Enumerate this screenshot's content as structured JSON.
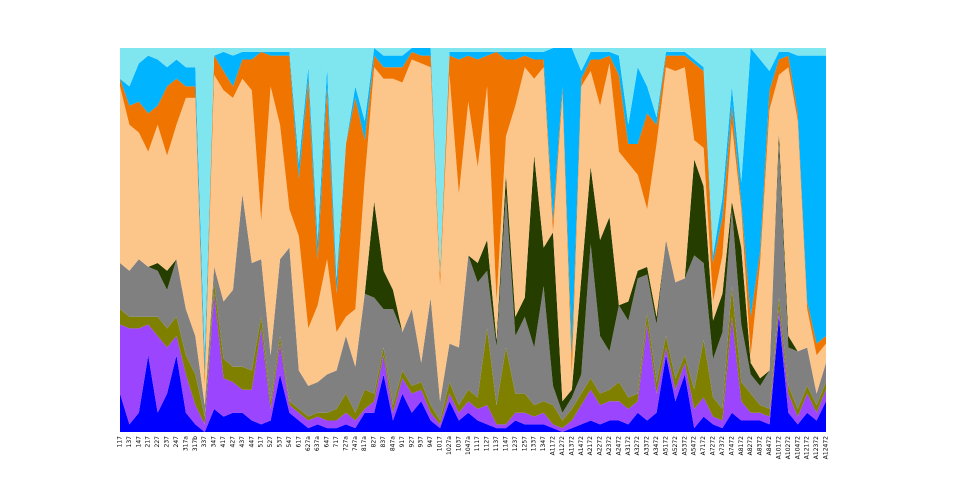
{
  "chart_data": {
    "type": "stacked-area",
    "categories": [
      "117",
      "137",
      "147",
      "217",
      "227",
      "237",
      "247",
      "317a",
      "317b",
      "337",
      "347",
      "417",
      "427",
      "437",
      "447",
      "517",
      "527",
      "537",
      "547",
      "617",
      "627a",
      "637a",
      "647",
      "717",
      "727a",
      "747a",
      "817a",
      "827",
      "837",
      "847a",
      "917",
      "927",
      "937",
      "947",
      "1017",
      "1027a",
      "1037",
      "1047a",
      "1117",
      "1127",
      "1137",
      "1147",
      "1237",
      "1257",
      "1337",
      "1347",
      "A1172",
      "A1272",
      "A1372",
      "A1472",
      "A2172",
      "A2272",
      "A2372",
      "A2472",
      "A3172",
      "A3272",
      "A3372",
      "A3472",
      "A5172",
      "A5272",
      "A5372",
      "A5472",
      "A7172",
      "A7272",
      "A7372",
      "A7472",
      "A8172",
      "A8272",
      "A8372",
      "A8472",
      "A10172",
      "A10272",
      "A10472",
      "A12172",
      "A12372",
      "A12472"
    ],
    "ylim": [
      0,
      100
    ],
    "series": [
      {
        "color": "#0000ff",
        "values": [
          10,
          2,
          5,
          20,
          5,
          10,
          20,
          5,
          2,
          0,
          6,
          4,
          5,
          5,
          3,
          2,
          3,
          15,
          5,
          3,
          1,
          2,
          1,
          1,
          2,
          1,
          5,
          5,
          15,
          3,
          10,
          5,
          8,
          3,
          1,
          8,
          3,
          5,
          3,
          2,
          1,
          1,
          3,
          2,
          2,
          2,
          1,
          0,
          1,
          2,
          3,
          2,
          3,
          3,
          2,
          5,
          3,
          5,
          20,
          8,
          15,
          1,
          4,
          2,
          1,
          5,
          3,
          3,
          3,
          2,
          30,
          5,
          2,
          5,
          3,
          8
        ]
      },
      {
        "color": "#9b45ff",
        "values": [
          18,
          25,
          22,
          8,
          20,
          12,
          5,
          10,
          5,
          2,
          30,
          10,
          8,
          6,
          8,
          25,
          3,
          8,
          2,
          2,
          2,
          2,
          2,
          2,
          3,
          2,
          1,
          3,
          5,
          2,
          4,
          5,
          3,
          2,
          1,
          2,
          2,
          3,
          3,
          5,
          1,
          1,
          2,
          3,
          2,
          3,
          1,
          1,
          2,
          5,
          8,
          5,
          5,
          5,
          4,
          3,
          25,
          5,
          2,
          3,
          3,
          5,
          5,
          2,
          2,
          25,
          5,
          2,
          2,
          2,
          2,
          5,
          2,
          5,
          2,
          3
        ]
      },
      {
        "color": "#808000",
        "values": [
          4,
          3,
          3,
          2,
          5,
          5,
          5,
          5,
          8,
          2,
          3,
          5,
          4,
          6,
          5,
          3,
          2,
          2,
          1,
          1,
          1,
          1,
          2,
          3,
          5,
          2,
          5,
          2,
          2,
          2,
          2,
          2,
          2,
          2,
          1,
          3,
          2,
          3,
          3,
          20,
          5,
          20,
          5,
          5,
          3,
          3,
          5,
          2,
          3,
          3,
          3,
          3,
          3,
          5,
          3,
          2,
          3,
          3,
          3,
          3,
          2,
          5,
          15,
          5,
          3,
          8,
          5,
          5,
          2,
          2,
          3,
          2,
          2,
          2,
          2,
          2
        ]
      },
      {
        "color": "#808080",
        "values": [
          12,
          12,
          15,
          13,
          12,
          10,
          15,
          12,
          10,
          3,
          4,
          15,
          20,
          45,
          28,
          15,
          12,
          20,
          40,
          10,
          8,
          8,
          10,
          10,
          15,
          12,
          25,
          25,
          10,
          25,
          10,
          20,
          5,
          28,
          5,
          10,
          15,
          35,
          30,
          15,
          15,
          40,
          15,
          20,
          15,
          30,
          5,
          2,
          3,
          5,
          35,
          15,
          10,
          20,
          20,
          30,
          10,
          15,
          25,
          25,
          20,
          35,
          20,
          10,
          20,
          20,
          15,
          5,
          5,
          10,
          40,
          10,
          15,
          10,
          3,
          5
        ]
      },
      {
        "color": "#263d00",
        "values": [
          0,
          0,
          0,
          0,
          2,
          5,
          0,
          0,
          0,
          0,
          0,
          0,
          0,
          0,
          0,
          0,
          0,
          0,
          0,
          0,
          0,
          0,
          0,
          0,
          0,
          0,
          0,
          25,
          10,
          5,
          0,
          0,
          0,
          0,
          0,
          0,
          0,
          0,
          5,
          8,
          2,
          5,
          5,
          5,
          50,
          10,
          40,
          3,
          2,
          25,
          20,
          25,
          35,
          0,
          5,
          2,
          2,
          2,
          0,
          0,
          0,
          25,
          20,
          10,
          10,
          2,
          20,
          3,
          2,
          0,
          3,
          3,
          0,
          0,
          0,
          0
        ]
      },
      {
        "color": "#fcc58a",
        "values": [
          46,
          38,
          33,
          30,
          36,
          30,
          35,
          55,
          62,
          5,
          50,
          55,
          50,
          30,
          45,
          10,
          70,
          35,
          10,
          35,
          15,
          20,
          30,
          10,
          5,
          15,
          30,
          35,
          50,
          55,
          65,
          65,
          78,
          60,
          30,
          70,
          40,
          40,
          25,
          40,
          10,
          10,
          55,
          60,
          20,
          47,
          0,
          80,
          4,
          50,
          25,
          35,
          40,
          40,
          36,
          25,
          15,
          45,
          45,
          55,
          55,
          5,
          10,
          5,
          10,
          20,
          10,
          2,
          30,
          68,
          15,
          70,
          60,
          10,
          10,
          5
        ]
      },
      {
        "color": "#f07400",
        "values": [
          2,
          5,
          8,
          10,
          5,
          18,
          12,
          3,
          3,
          3,
          5,
          5,
          3,
          5,
          8,
          44,
          8,
          18,
          40,
          15,
          65,
          12,
          45,
          10,
          45,
          55,
          10,
          3,
          3,
          3,
          4,
          2,
          2,
          3,
          3,
          5,
          35,
          12,
          28,
          8,
          65,
          20,
          12,
          3,
          5,
          2,
          3,
          2,
          5,
          2,
          3,
          12,
          2,
          20,
          5,
          8,
          25,
          5,
          3,
          4,
          3,
          20,
          20,
          10,
          10,
          5,
          2,
          10,
          3,
          5,
          4,
          3,
          2,
          2,
          3,
          2
        ]
      },
      {
        "color": "#00b4ff",
        "values": [
          0,
          5,
          10,
          15,
          12,
          5,
          5,
          5,
          5,
          5,
          0,
          5,
          8,
          2,
          2,
          0,
          1,
          1,
          1,
          4,
          3,
          5,
          5,
          4,
          0,
          3,
          5,
          2,
          3,
          3,
          3,
          1,
          2,
          2,
          0,
          1,
          2,
          1,
          2,
          1,
          0,
          2,
          2,
          1,
          2,
          2,
          45,
          10,
          80,
          2,
          2,
          2,
          1,
          5,
          5,
          20,
          7,
          2,
          1,
          1,
          1,
          1,
          1,
          2,
          5,
          5,
          5,
          70,
          50,
          5,
          2,
          1,
          15,
          64,
          75,
          73
        ]
      },
      {
        "color": "#7fe6f0",
        "values": [
          8,
          10,
          4,
          2,
          3,
          5,
          3,
          5,
          5,
          80,
          2,
          1,
          2,
          1,
          1,
          1,
          1,
          1,
          1,
          30,
          5,
          50,
          5,
          60,
          25,
          10,
          19,
          0,
          2,
          2,
          2,
          0,
          0,
          0,
          59,
          1,
          1,
          1,
          1,
          1,
          1,
          1,
          1,
          1,
          1,
          1,
          0,
          0,
          0,
          6,
          1,
          1,
          1,
          2,
          20,
          5,
          10,
          18,
          1,
          1,
          1,
          3,
          5,
          54,
          39,
          10,
          35,
          0,
          3,
          6,
          1,
          1,
          2,
          2,
          2,
          2
        ]
      }
    ]
  }
}
